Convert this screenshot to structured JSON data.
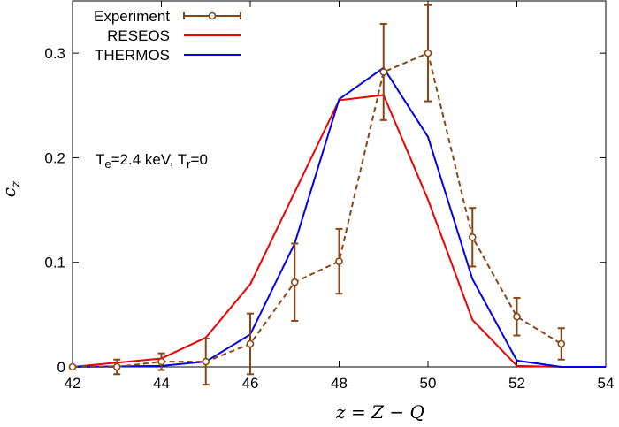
{
  "chart_data": {
    "type": "line",
    "xlabel": "z = Z − Q",
    "ylabel": "c",
    "ylabel_sub": "z",
    "xlim": [
      42,
      54
    ],
    "ylim": [
      0,
      0.35
    ],
    "xticks": [
      42,
      44,
      46,
      48,
      50,
      52,
      54
    ],
    "yticks": [
      0,
      0.1,
      0.2,
      0.3
    ],
    "ytick_labels": [
      "0",
      "0.1",
      "0.2",
      "0.3"
    ],
    "grid": false,
    "legend_position": "top-left",
    "annotation": {
      "parts": [
        "T",
        "e",
        "=2.4 keV, T",
        "r",
        "=0"
      ]
    },
    "series": [
      {
        "name": "Experiment",
        "style": "dashed-markers-errorbars",
        "color": "#8b4513",
        "x": [
          42,
          43,
          44,
          45,
          46,
          47,
          48,
          49,
          50,
          51,
          52,
          53
        ],
        "y": [
          0.0,
          0.0,
          0.005,
          0.005,
          0.022,
          0.081,
          0.101,
          0.282,
          0.3,
          0.124,
          0.048,
          0.022
        ],
        "err": [
          0.0,
          0.007,
          0.008,
          0.022,
          0.029,
          0.037,
          0.031,
          0.046,
          0.046,
          0.028,
          0.018,
          0.015
        ]
      },
      {
        "name": "RESEOS",
        "style": "solid",
        "color": "#ee0000",
        "x": [
          42,
          44,
          45,
          46,
          48,
          49,
          50,
          51,
          52,
          53,
          54
        ],
        "y": [
          0.0,
          0.008,
          0.028,
          0.079,
          0.255,
          0.26,
          0.16,
          0.045,
          0.001,
          0.0,
          0.0
        ]
      },
      {
        "name": "THERMOS",
        "style": "solid",
        "color": "#0000ee",
        "x": [
          42,
          44,
          45,
          46,
          47,
          48,
          49,
          50,
          51,
          52,
          53,
          54
        ],
        "y": [
          0.0,
          0.001,
          0.005,
          0.031,
          0.118,
          0.256,
          0.286,
          0.22,
          0.084,
          0.006,
          0.0,
          0.0
        ]
      }
    ]
  }
}
